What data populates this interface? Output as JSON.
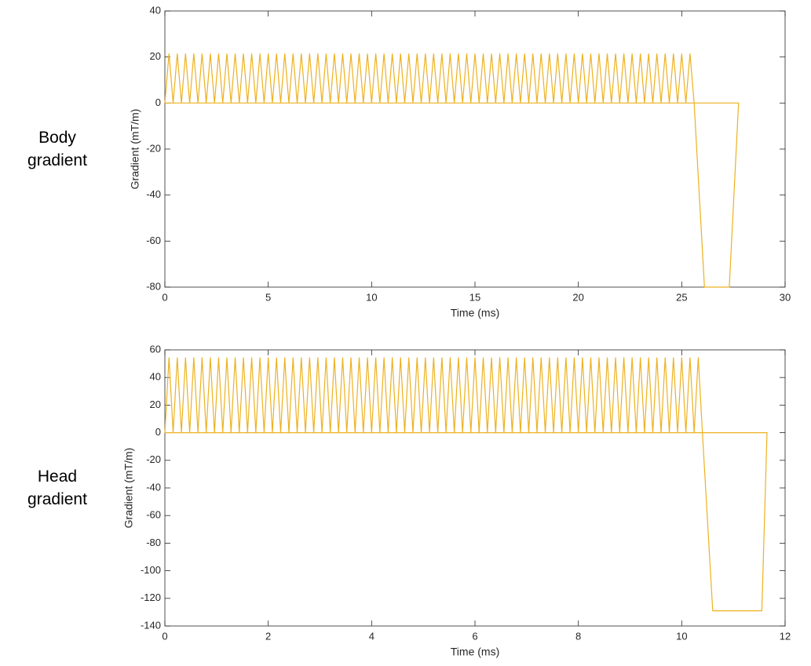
{
  "chart_data": [
    {
      "type": "line",
      "side_label": "Body gradient",
      "xlabel": "Time (ms)",
      "ylabel": "Gradient (mT/m)",
      "color": "#EDB120",
      "xlim": [
        0,
        30
      ],
      "ylim": [
        -80,
        40
      ],
      "xticks": [
        0,
        5,
        10,
        15,
        20,
        25,
        30
      ],
      "yticks": [
        -80,
        -60,
        -40,
        -20,
        0,
        20,
        40
      ],
      "x": [
        0,
        0.2,
        0.4,
        0.6,
        0.8,
        1,
        1.2,
        1.4,
        1.6,
        1.8,
        2,
        2.2,
        2.4,
        2.6,
        2.8,
        3,
        3.2,
        3.4,
        3.6,
        3.8,
        4,
        4.2,
        4.4,
        4.6,
        4.8,
        5,
        5.2,
        5.4,
        5.6,
        5.8,
        6,
        6.2,
        6.4,
        6.6,
        6.8,
        7,
        7.2,
        7.4,
        7.6,
        7.8,
        8,
        8.2,
        8.4,
        8.6,
        8.8,
        9,
        9.2,
        9.4,
        9.6,
        9.8,
        10,
        10.2,
        10.4,
        10.6,
        10.8,
        11,
        11.2,
        11.4,
        11.6,
        11.8,
        12,
        12.2,
        12.4,
        12.6,
        12.8,
        13,
        13.2,
        13.4,
        13.6,
        13.8,
        14,
        14.2,
        14.4,
        14.6,
        14.8,
        15,
        15.2,
        15.4,
        15.6,
        15.8,
        16,
        16.2,
        16.4,
        16.6,
        16.8,
        17,
        17.2,
        17.4,
        17.6,
        17.8,
        18,
        18.2,
        18.4,
        18.6,
        18.8,
        19,
        19.2,
        19.4,
        19.6,
        19.8,
        20,
        20.2,
        20.4,
        20.6,
        20.8,
        21,
        21.2,
        21.4,
        21.6,
        21.8,
        22,
        22.2,
        22.4,
        22.6,
        22.8,
        23,
        23.2,
        23.4,
        23.6,
        23.8,
        24,
        24.2,
        24.4,
        24.6,
        24.8,
        25,
        25.2,
        25.4,
        25.6,
        26.1,
        27.3,
        27.75,
        0
      ],
      "y": [
        0,
        21.5,
        0,
        21.5,
        0,
        21.5,
        0,
        21.5,
        0,
        21.5,
        0,
        21.5,
        0,
        21.5,
        0,
        21.5,
        0,
        21.5,
        0,
        21.5,
        0,
        21.5,
        0,
        21.5,
        0,
        21.5,
        0,
        21.5,
        0,
        21.5,
        0,
        21.5,
        0,
        21.5,
        0,
        21.5,
        0,
        21.5,
        0,
        21.5,
        0,
        21.5,
        0,
        21.5,
        0,
        21.5,
        0,
        21.5,
        0,
        21.5,
        0,
        21.5,
        0,
        21.5,
        0,
        21.5,
        0,
        21.5,
        0,
        21.5,
        0,
        21.5,
        0,
        21.5,
        0,
        21.5,
        0,
        21.5,
        0,
        21.5,
        0,
        21.5,
        0,
        21.5,
        0,
        21.5,
        0,
        21.5,
        0,
        21.5,
        0,
        21.5,
        0,
        21.5,
        0,
        21.5,
        0,
        21.5,
        0,
        21.5,
        0,
        21.5,
        0,
        21.5,
        0,
        21.5,
        0,
        21.5,
        0,
        21.5,
        0,
        21.5,
        0,
        21.5,
        0,
        21.5,
        0,
        21.5,
        0,
        21.5,
        0,
        21.5,
        0,
        21.5,
        0,
        21.5,
        0,
        21.5,
        0,
        21.5,
        0,
        21.5,
        0,
        21.5,
        0,
        21.5,
        0,
        21.5,
        0,
        -80,
        -80,
        0,
        0
      ]
    },
    {
      "type": "line",
      "side_label": "Head gradient",
      "xlabel": "Time (ms)",
      "ylabel": "Gradient (mT/m)",
      "color": "#EDB120",
      "xlim": [
        0,
        12
      ],
      "ylim": [
        -140,
        60
      ],
      "xticks": [
        0,
        2,
        4,
        6,
        8,
        10,
        12
      ],
      "yticks": [
        -140,
        -120,
        -100,
        -80,
        -60,
        -40,
        -20,
        0,
        20,
        40,
        60
      ],
      "x": [
        0,
        0.08,
        0.16,
        0.24,
        0.32,
        0.4,
        0.48,
        0.56,
        0.64,
        0.72,
        0.8,
        0.88,
        0.96,
        1.04,
        1.12,
        1.2,
        1.28,
        1.36,
        1.44,
        1.52,
        1.6,
        1.68,
        1.76,
        1.84,
        1.92,
        2,
        2.08,
        2.16,
        2.24,
        2.32,
        2.4,
        2.48,
        2.56,
        2.64,
        2.72,
        2.8,
        2.88,
        2.96,
        3.04,
        3.12,
        3.2,
        3.28,
        3.36,
        3.44,
        3.52,
        3.6,
        3.68,
        3.76,
        3.84,
        3.92,
        4,
        4.08,
        4.16,
        4.24,
        4.32,
        4.4,
        4.48,
        4.56,
        4.64,
        4.72,
        4.8,
        4.88,
        4.96,
        5.04,
        5.12,
        5.2,
        5.28,
        5.36,
        5.44,
        5.52,
        5.6,
        5.68,
        5.76,
        5.84,
        5.92,
        6,
        6.08,
        6.16,
        6.24,
        6.32,
        6.4,
        6.48,
        6.56,
        6.64,
        6.72,
        6.8,
        6.88,
        6.96,
        7.04,
        7.12,
        7.2,
        7.28,
        7.36,
        7.44,
        7.52,
        7.6,
        7.68,
        7.76,
        7.84,
        7.92,
        8,
        8.08,
        8.16,
        8.24,
        8.32,
        8.4,
        8.48,
        8.56,
        8.64,
        8.72,
        8.8,
        8.88,
        8.96,
        9.04,
        9.12,
        9.2,
        9.28,
        9.36,
        9.44,
        9.52,
        9.6,
        9.68,
        9.76,
        9.84,
        9.92,
        10,
        10.08,
        10.16,
        10.24,
        10.32,
        10.4,
        10.6,
        11.55,
        11.65,
        0
      ],
      "y": [
        0,
        54.5,
        0,
        54.5,
        0,
        54.5,
        0,
        54.5,
        0,
        54.5,
        0,
        54.5,
        0,
        54.5,
        0,
        54.5,
        0,
        54.5,
        0,
        54.5,
        0,
        54.5,
        0,
        54.5,
        0,
        54.5,
        0,
        54.5,
        0,
        54.5,
        0,
        54.5,
        0,
        54.5,
        0,
        54.5,
        0,
        54.5,
        0,
        54.5,
        0,
        54.5,
        0,
        54.5,
        0,
        54.5,
        0,
        54.5,
        0,
        54.5,
        0,
        54.5,
        0,
        54.5,
        0,
        54.5,
        0,
        54.5,
        0,
        54.5,
        0,
        54.5,
        0,
        54.5,
        0,
        54.5,
        0,
        54.5,
        0,
        54.5,
        0,
        54.5,
        0,
        54.5,
        0,
        54.5,
        0,
        54.5,
        0,
        54.5,
        0,
        54.5,
        0,
        54.5,
        0,
        54.5,
        0,
        54.5,
        0,
        54.5,
        0,
        54.5,
        0,
        54.5,
        0,
        54.5,
        0,
        54.5,
        0,
        54.5,
        0,
        54.5,
        0,
        54.5,
        0,
        54.5,
        0,
        54.5,
        0,
        54.5,
        0,
        54.5,
        0,
        54.5,
        0,
        54.5,
        0,
        54.5,
        0,
        54.5,
        0,
        54.5,
        0,
        54.5,
        0,
        54.5,
        0,
        54.5,
        0,
        54.5,
        0,
        -129,
        -129,
        0,
        0
      ]
    }
  ]
}
